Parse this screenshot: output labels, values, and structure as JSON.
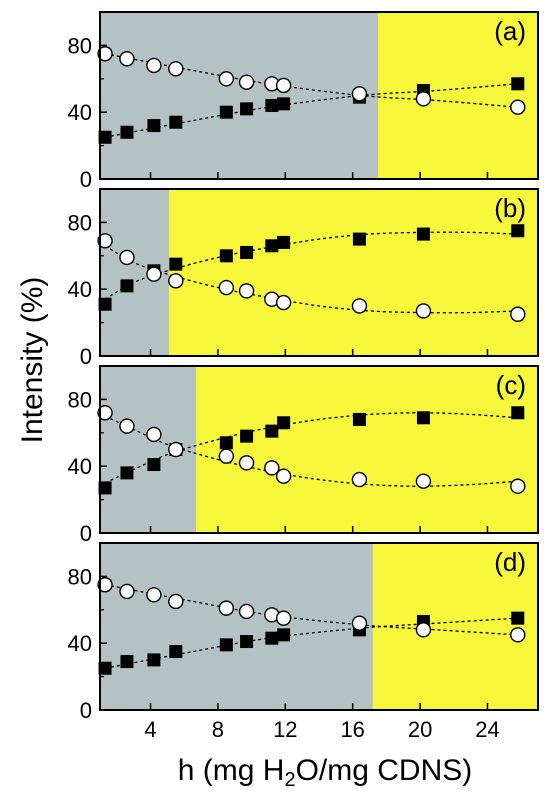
{
  "chart_data": {
    "type": "scatter",
    "ylabel": "Intensity (%)",
    "xlabel_parts": [
      "h (mg H",
      "2",
      "O/mg CDNS)"
    ],
    "xlim": [
      1,
      27
    ],
    "ylim": [
      0,
      100
    ],
    "xticks": [
      4,
      8,
      12,
      16,
      20,
      24
    ],
    "yticks": [
      0,
      40,
      80
    ],
    "colors": {
      "region_left": "#b4c2c6",
      "region_right": "#f6f63a",
      "marker": "#000000"
    },
    "panels": [
      {
        "label": "(a)",
        "region_boundary_x": 17.5,
        "series": [
          {
            "marker": "filled-square",
            "x": [
              1.3,
              2.6,
              4.2,
              5.5,
              8.5,
              9.7,
              11.2,
              11.9,
              16.4,
              20.2,
              25.8
            ],
            "y": [
              25,
              28,
              32,
              34,
              40,
              42,
              44,
              45,
              49,
              53,
              57
            ]
          },
          {
            "marker": "open-circle",
            "x": [
              1.3,
              2.6,
              4.2,
              5.5,
              8.5,
              9.7,
              11.2,
              11.9,
              16.4,
              20.2,
              25.8
            ],
            "y": [
              75,
              72,
              68,
              66,
              60,
              58,
              57,
              56,
              51,
              48,
              43
            ]
          }
        ],
        "fit_x": [
          1.3,
          6,
          11,
          16.5,
          21,
          25.8
        ],
        "fit_filled": [
          25,
          34,
          43,
          50,
          53,
          57
        ],
        "fit_open": [
          75,
          66,
          57,
          50,
          47,
          43
        ]
      },
      {
        "label": "(b)",
        "region_boundary_x": 5.1,
        "series": [
          {
            "marker": "filled-square",
            "x": [
              1.3,
              2.6,
              4.2,
              5.5,
              8.5,
              9.7,
              11.2,
              11.9,
              16.4,
              20.2,
              25.8
            ],
            "y": [
              31,
              42,
              51,
              55,
              60,
              62,
              66,
              68,
              70,
              73,
              75
            ]
          },
          {
            "marker": "open-circle",
            "x": [
              1.3,
              2.6,
              4.2,
              5.5,
              8.5,
              9.7,
              11.2,
              11.9,
              16.4,
              20.2,
              25.8
            ],
            "y": [
              69,
              59,
              49,
              45,
              41,
              39,
              34,
              32,
              30,
              27,
              25
            ]
          }
        ],
        "fit_x": [
          1.3,
          3,
          5,
          8,
          11,
          14,
          17,
          20,
          23,
          25.8
        ],
        "fit_filled": [
          34,
          44,
          51,
          59,
          65,
          70,
          73,
          74,
          74,
          73
        ],
        "fit_open": [
          66,
          56,
          49,
          41,
          35,
          30,
          27,
          26,
          26,
          27
        ]
      },
      {
        "label": "(c)",
        "region_boundary_x": 6.7,
        "series": [
          {
            "marker": "filled-square",
            "x": [
              1.3,
              2.6,
              4.2,
              5.5,
              8.5,
              9.7,
              11.2,
              11.9,
              16.4,
              20.2,
              25.8
            ],
            "y": [
              27,
              36,
              41,
              50,
              54,
              58,
              61,
              66,
              68,
              69,
              72
            ]
          },
          {
            "marker": "open-circle",
            "x": [
              1.3,
              2.6,
              4.2,
              5.5,
              8.5,
              9.7,
              11.2,
              11.9,
              16.4,
              20.2,
              25.8
            ],
            "y": [
              72,
              64,
              59,
              50,
              46,
              42,
              39,
              34,
              32,
              31,
              28
            ]
          }
        ],
        "fit_x": [
          1.3,
          3,
          5,
          8,
          11,
          14,
          17,
          20,
          23,
          25.8
        ],
        "fit_filled": [
          30,
          38,
          47,
          56,
          63,
          68,
          71,
          72,
          71,
          69
        ],
        "fit_open": [
          70,
          62,
          53,
          44,
          37,
          32,
          29,
          28,
          29,
          31
        ]
      },
      {
        "label": "(d)",
        "region_boundary_x": 17.2,
        "series": [
          {
            "marker": "filled-square",
            "x": [
              1.3,
              2.6,
              4.2,
              5.5,
              8.5,
              9.7,
              11.2,
              11.9,
              16.4,
              20.2,
              25.8
            ],
            "y": [
              25,
              29,
              30,
              35,
              39,
              41,
              43,
              45,
              48,
              53,
              55
            ]
          },
          {
            "marker": "open-circle",
            "x": [
              1.3,
              2.6,
              4.2,
              5.5,
              8.5,
              9.7,
              11.2,
              11.9,
              16.4,
              20.2,
              25.8
            ],
            "y": [
              75,
              71,
              69,
              65,
              61,
              59,
              57,
              55,
              52,
              48,
              45
            ]
          }
        ],
        "fit_x": [
          1.3,
          6,
          11,
          16.5,
          21,
          25.8
        ],
        "fit_filled": [
          25,
          34,
          43,
          49,
          52,
          55
        ],
        "fit_open": [
          75,
          66,
          57,
          51,
          48,
          45
        ]
      }
    ]
  }
}
